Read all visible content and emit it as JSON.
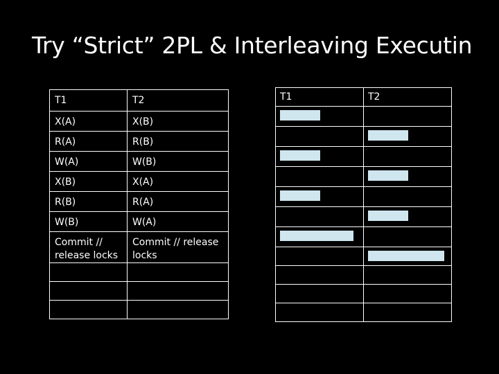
{
  "title": "Try “Strict” 2PL & Interleaving Executin",
  "left_table": {
    "headers": [
      "T1",
      "T2"
    ],
    "rows": [
      [
        "X(A)",
        "X(B)"
      ],
      [
        "R(A)",
        "R(B)"
      ],
      [
        "W(A)",
        "W(B)"
      ],
      [
        "X(B)",
        "X(A)"
      ],
      [
        "R(B)",
        "R(A)"
      ],
      [
        "W(B)",
        "W(A)"
      ],
      [
        "Commit // release locks",
        "Commit // release locks"
      ],
      [
        "",
        ""
      ],
      [
        "",
        ""
      ],
      [
        "",
        ""
      ]
    ]
  },
  "right_table": {
    "headers": [
      "T1",
      "T2"
    ]
  },
  "colors": {
    "background": "#000000",
    "text": "#ffffff",
    "answer_box": "#cfe6ef"
  }
}
